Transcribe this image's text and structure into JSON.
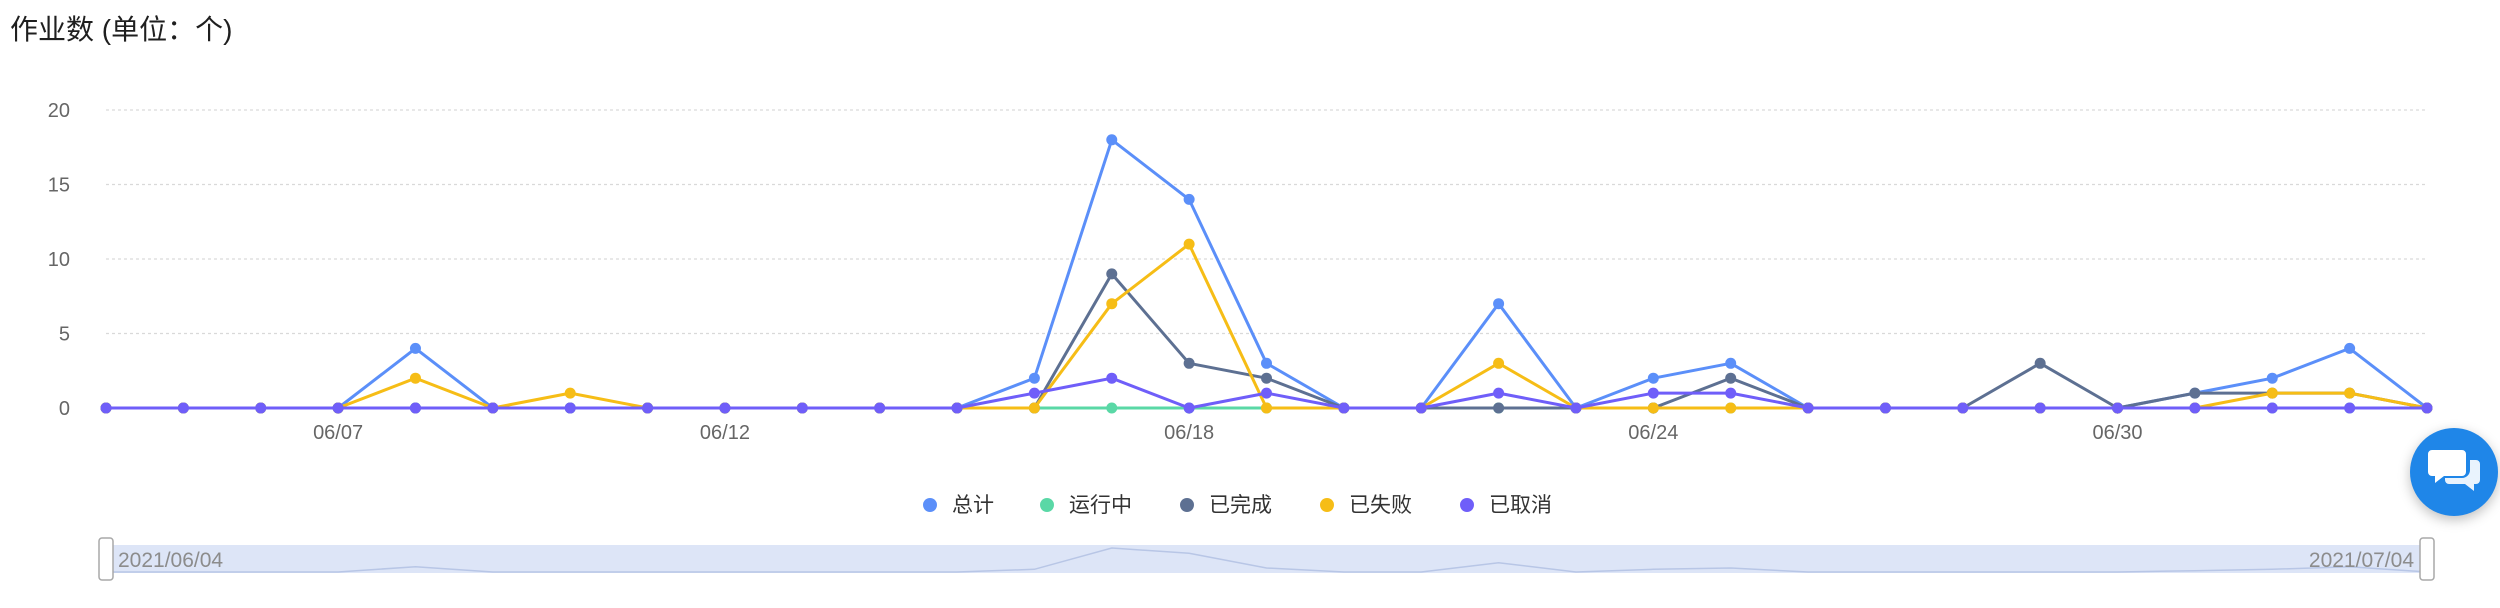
{
  "title": "作业数 (单位：个)",
  "chart_data": {
    "type": "line",
    "title": "作业数 (单位：个)",
    "x": [
      "06/04",
      "06/05",
      "06/06",
      "06/07",
      "06/08",
      "06/09",
      "06/10",
      "06/11",
      "06/12",
      "06/13",
      "06/14",
      "06/15",
      "06/16",
      "06/17",
      "06/18",
      "06/19",
      "06/20",
      "06/21",
      "06/22",
      "06/23",
      "06/24",
      "06/25",
      "06/26",
      "06/27",
      "06/28",
      "06/29",
      "06/30",
      "07/01",
      "07/02",
      "07/03",
      "07/04"
    ],
    "x_tick_labels": [
      "06/07",
      "06/12",
      "06/18",
      "06/24",
      "06/30"
    ],
    "y_tick_labels": [
      "0",
      "5",
      "10",
      "15",
      "20"
    ],
    "ylim": [
      0,
      20
    ],
    "grid": "horizontal dashed",
    "legend_position": "bottom",
    "series": [
      {
        "name": "总计",
        "color": "#5b8ff9",
        "values": [
          0,
          0,
          0,
          0,
          4,
          0,
          0,
          0,
          0,
          0,
          0,
          0,
          2,
          18,
          14,
          3,
          0,
          0,
          7,
          0,
          2,
          3,
          0,
          0,
          0,
          0,
          0,
          1,
          2,
          4,
          0
        ]
      },
      {
        "name": "运行中",
        "color": "#5ad8a6",
        "values": [
          0,
          0,
          0,
          0,
          0,
          0,
          0,
          0,
          0,
          0,
          0,
          0,
          0,
          0,
          0,
          0,
          0,
          0,
          0,
          0,
          0,
          0,
          0,
          0,
          0,
          0,
          0,
          0,
          0,
          0,
          0
        ]
      },
      {
        "name": "已完成",
        "color": "#5d7092",
        "values": [
          0,
          0,
          0,
          0,
          0,
          0,
          0,
          0,
          0,
          0,
          0,
          0,
          0,
          9,
          3,
          2,
          0,
          0,
          0,
          0,
          0,
          2,
          0,
          0,
          0,
          3,
          0,
          1,
          1,
          1,
          0
        ]
      },
      {
        "name": "已失败",
        "color": "#f6bd16",
        "values": [
          0,
          0,
          0,
          0,
          2,
          0,
          1,
          0,
          0,
          0,
          0,
          0,
          0,
          7,
          11,
          0,
          0,
          0,
          3,
          0,
          0,
          0,
          0,
          0,
          0,
          0,
          0,
          0,
          1,
          1,
          0
        ]
      },
      {
        "name": "已取消",
        "color": "#6f5ef9",
        "values": [
          0,
          0,
          0,
          0,
          0,
          0,
          0,
          0,
          0,
          0,
          0,
          0,
          1,
          2,
          0,
          1,
          0,
          0,
          1,
          0,
          1,
          1,
          0,
          0,
          0,
          0,
          0,
          0,
          0,
          0,
          0
        ]
      }
    ],
    "slider": {
      "start_label": "2021/06/04",
      "end_label": "2021/07/04"
    }
  },
  "chat_button": {
    "icon": "chat-bubbles-icon",
    "color": "#1f86e8"
  }
}
